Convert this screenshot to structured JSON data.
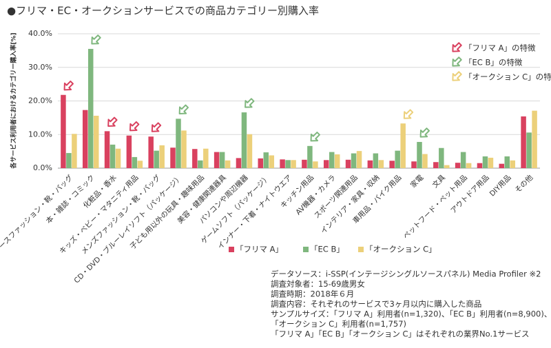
{
  "chart_data": {
    "type": "bar",
    "title": "●フリマ・EC・オークションサービスでの商品カテゴリー別購入率",
    "y_label": "各サービス利用者におけるカテゴリー購入率[%]",
    "categories": [
      "レディースファッション・靴・バッグ",
      "本・雑誌・コミック",
      "化粧品・香水",
      "キッズ・ベビー・マタニティ用品",
      "メンズファッション・靴・バッグ",
      "CD・DVD・ブルーレイソフト（パッケージ）",
      "子ども用以外の玩具・趣味用品",
      "美容・健康関連器具",
      "パソコンや周辺機器",
      "ゲームソフト（パッケージ）",
      "インナー・下着・ナイトウエア",
      "キッチン用品",
      "AV機器・カメラ",
      "スポーツ関連用品",
      "インテリア・家具・収納",
      "車用品・バイク用品",
      "家電",
      "文具",
      "ペットフード・ペット用品",
      "アウトドア用品",
      "DIY用品",
      "その他"
    ],
    "series": [
      {
        "name": "「フリマ A」",
        "color": "#d9415f",
        "values": [
          21.8,
          17.3,
          11.0,
          9.7,
          9.4,
          6.1,
          5.7,
          4.8,
          3.0,
          2.9,
          2.6,
          2.5,
          2.4,
          2.5,
          2.3,
          2.2,
          2.0,
          1.8,
          1.6,
          1.5,
          1.3,
          15.4
        ]
      },
      {
        "name": "「EC B」",
        "color": "#7fb77e",
        "values": [
          4.5,
          35.5,
          7.0,
          3.3,
          5.2,
          14.7,
          2.3,
          4.8,
          16.6,
          4.7,
          2.4,
          6.6,
          4.8,
          4.4,
          4.4,
          5.2,
          7.8,
          6.0,
          4.8,
          3.5,
          3.5,
          10.6
        ]
      },
      {
        "name": "「オークション C」",
        "color": "#ecd07a",
        "values": [
          10.2,
          15.6,
          5.8,
          2.2,
          6.8,
          11.2,
          5.8,
          2.3,
          10.1,
          3.8,
          2.4,
          2.0,
          4.1,
          5.1,
          2.4,
          13.3,
          4.2,
          0.9,
          1.5,
          3.1,
          2.3,
          17.1
        ]
      }
    ],
    "ylim": [
      0,
      40
    ],
    "yticks": [
      {
        "value": 0,
        "label": "0.0%"
      },
      {
        "value": 10,
        "label": "10.0%"
      },
      {
        "value": 20,
        "label": "20.0%"
      },
      {
        "value": 30,
        "label": "30.0%"
      },
      {
        "value": 40,
        "label": "40.0%"
      }
    ],
    "annotations": [
      "「フリマ A」の特徴",
      "「EC B」の特徴",
      "「オークション C」の特徴"
    ],
    "notes": [
      "データソース：i-SSP(インテージシングルソースパネル) Media Profiler ※2",
      "調査対象者：15-69歳男女",
      "調査時期：2018年６月",
      "調査内容：それぞれのサービスで3ヶ月以内に購入した商品",
      "サンプルサイズ：「フリマ A」利用者(n=1,320)、「EC B」利用者(n=8,900)、",
      "「オークション C」利用者(n=1,757)",
      "「フリマ A」「EC B」「オークション C」はそれぞれの業界No.1サービス"
    ]
  }
}
